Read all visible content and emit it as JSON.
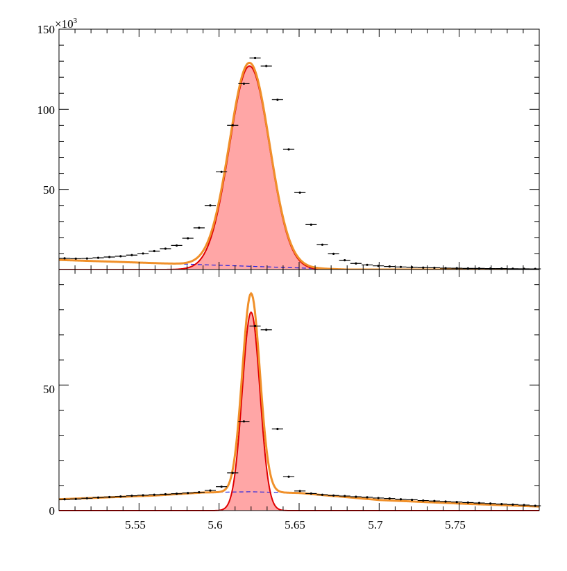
{
  "chart_data": [
    {
      "type": "line",
      "panel": "top",
      "xlim": [
        5.5,
        5.8
      ],
      "ylim": [
        0,
        150000
      ],
      "y_multiplier_label": "×10³",
      "y_multiplier_base": "×10",
      "y_multiplier_exp": "3",
      "y_ticks": [
        {
          "value": 50000,
          "label": "50"
        },
        {
          "value": 100000,
          "label": "100"
        },
        {
          "value": 150000,
          "label": "150"
        }
      ],
      "grid": false,
      "colors": {
        "total": "#f0902a",
        "signal_line": "#e00000",
        "signal_fill": "#ffa6a6",
        "background": "#2020e0",
        "data": "#000000"
      },
      "signal": {
        "mean": 5.619,
        "sigma": 0.0125,
        "peak": 127000
      },
      "background": {
        "start": 6000,
        "end": 0,
        "end_x": 5.68
      },
      "data_points": {
        "x": [
          5.5035,
          5.5105,
          5.5175,
          5.5245,
          5.5315,
          5.5385,
          5.5455,
          5.5525,
          5.5595,
          5.5665,
          5.5735,
          5.5805,
          5.5875,
          5.5945,
          5.6015,
          5.6085,
          5.6155,
          5.6225,
          5.6295,
          5.6365,
          5.6435,
          5.6505,
          5.6575,
          5.6645,
          5.6715,
          5.6785,
          5.6855,
          5.6925,
          5.6995,
          5.7065,
          5.7135,
          5.7205,
          5.7275,
          5.7345,
          5.7415,
          5.7485,
          5.7555,
          5.7625,
          5.7695,
          5.7765,
          5.7835,
          5.7905,
          5.7975
        ],
        "y": [
          7000,
          6800,
          6900,
          7300,
          7800,
          8300,
          9000,
          10000,
          11500,
          13000,
          15000,
          19500,
          26000,
          40000,
          61000,
          90000,
          116000,
          132000,
          127000,
          106000,
          75000,
          48000,
          28000,
          15500,
          9800,
          5800,
          3800,
          2900,
          2300,
          1900,
          1600,
          1400,
          1200,
          1100,
          900,
          800,
          700,
          700,
          600,
          600,
          500,
          450,
          400
        ]
      }
    },
    {
      "type": "line",
      "panel": "bottom",
      "xlim": [
        5.5,
        5.8
      ],
      "ylim": [
        0,
        96
      ],
      "x_ticks": [
        {
          "value": 5.55,
          "label": "5.55"
        },
        {
          "value": 5.6,
          "label": "5.6"
        },
        {
          "value": 5.65,
          "label": "5.65"
        },
        {
          "value": 5.7,
          "label": "5.7"
        },
        {
          "value": 5.75,
          "label": "5.75"
        }
      ],
      "y_ticks": [
        {
          "value": 0,
          "label": "0"
        },
        {
          "value": 50,
          "label": "50"
        }
      ],
      "grid": false,
      "colors": {
        "total": "#f0902a",
        "signal_line": "#e00000",
        "signal_fill": "#ffa6a6",
        "background": "#2020e0",
        "data": "#000000"
      },
      "signal": {
        "mean": 5.62,
        "sigma": 0.0055,
        "peak": 79
      },
      "background_points": {
        "x": [
          5.5,
          5.56,
          5.59,
          5.62,
          5.65,
          5.7,
          5.75,
          5.8
        ],
        "y": [
          4.5,
          6.0,
          7.2,
          7.5,
          7.0,
          4.2,
          2.8,
          1.6
        ]
      },
      "data_points": {
        "x": [
          5.5035,
          5.5105,
          5.5175,
          5.5245,
          5.5315,
          5.5385,
          5.5455,
          5.5525,
          5.5595,
          5.5665,
          5.5735,
          5.5805,
          5.5875,
          5.5945,
          5.6015,
          5.6085,
          5.6155,
          5.6225,
          5.6295,
          5.6365,
          5.6435,
          5.6505,
          5.6575,
          5.6645,
          5.6715,
          5.6785,
          5.6855,
          5.6925,
          5.6995,
          5.7065,
          5.7135,
          5.7205,
          5.7275,
          5.7345,
          5.7415,
          5.7485,
          5.7555,
          5.7625,
          5.7695,
          5.7765,
          5.7835,
          5.7905,
          5.7975
        ],
        "y": [
          4.5,
          4.6,
          4.9,
          5.2,
          5.4,
          5.6,
          5.9,
          6.1,
          6.3,
          6.5,
          6.7,
          7.0,
          7.3,
          8.0,
          9.5,
          15.0,
          35.5,
          73.5,
          72.0,
          32.5,
          13.5,
          7.8,
          6.8,
          6.3,
          6.0,
          5.8,
          5.5,
          5.3,
          5.0,
          4.8,
          4.5,
          4.3,
          4.0,
          3.8,
          3.6,
          3.4,
          3.2,
          3.0,
          2.8,
          2.6,
          2.4,
          2.2,
          1.9
        ]
      }
    }
  ]
}
